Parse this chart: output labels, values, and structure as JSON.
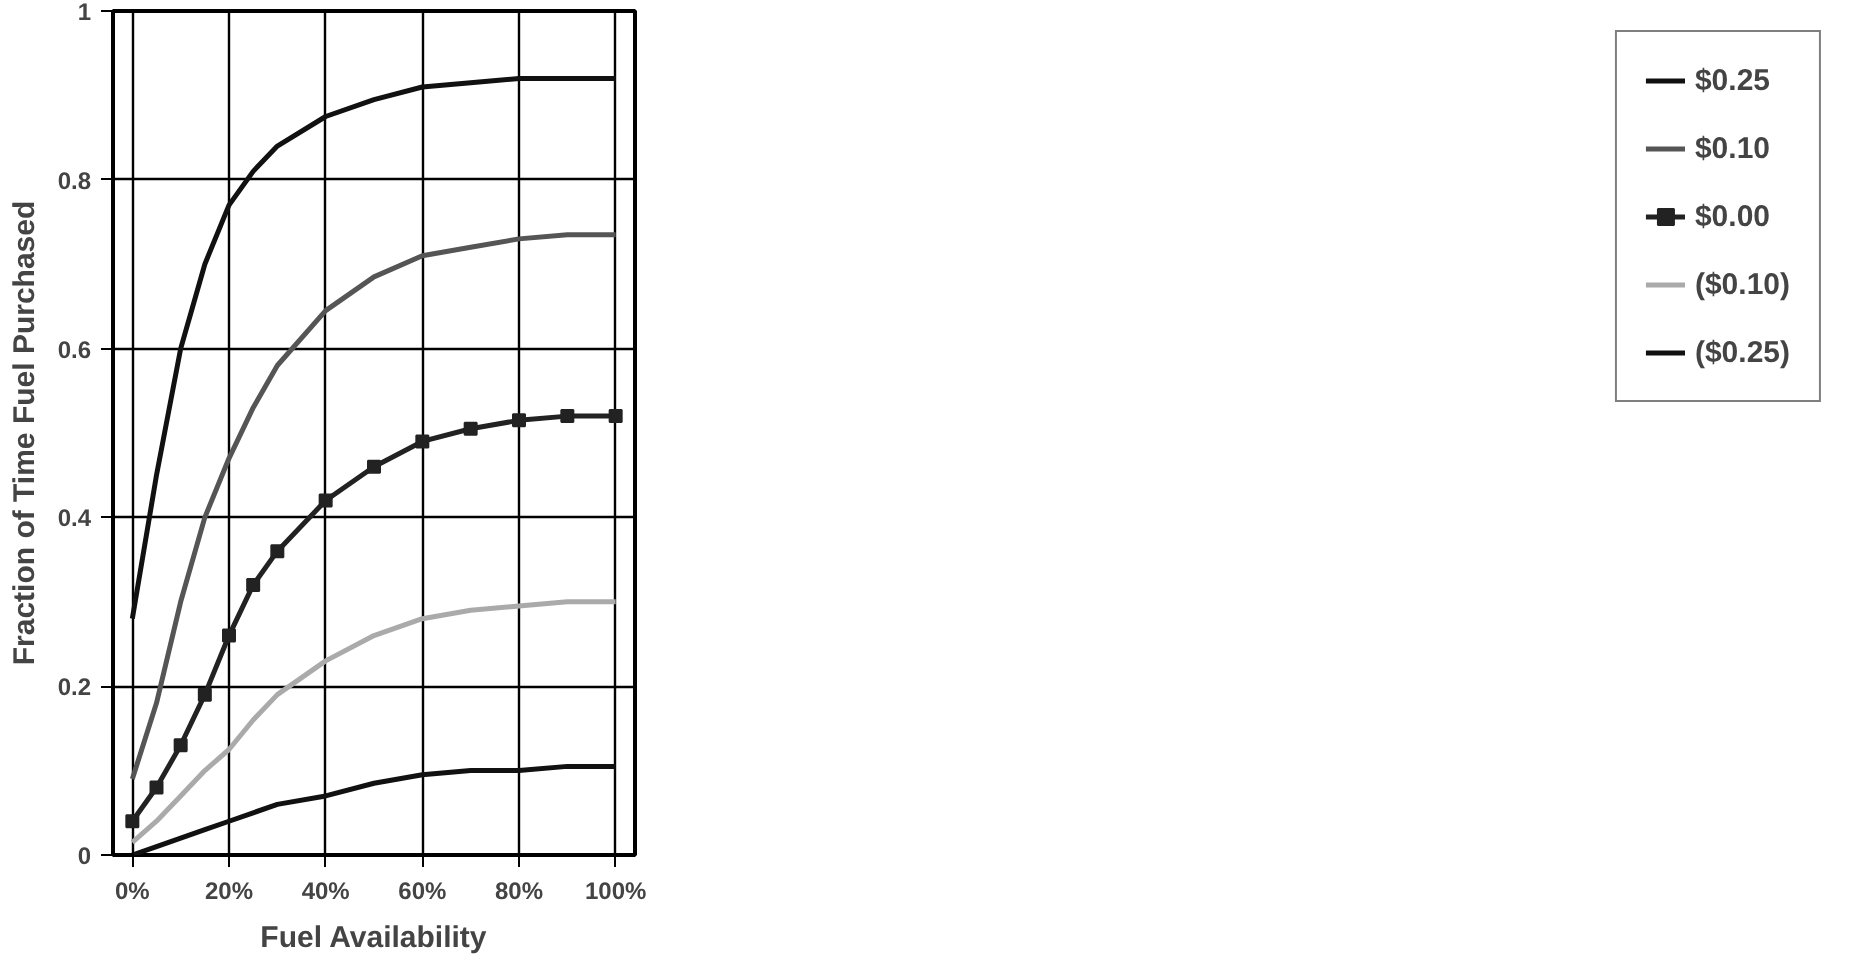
{
  "chart_data": {
    "type": "line",
    "xlabel": "Fuel Availability",
    "ylabel": "Fraction of Time Fuel Purchased",
    "x": [
      0,
      5,
      10,
      15,
      20,
      25,
      30,
      40,
      50,
      60,
      70,
      80,
      90,
      100
    ],
    "series": [
      {
        "name": "$0.25",
        "color": "#111111",
        "values": [
          0.28,
          0.45,
          0.6,
          0.7,
          0.77,
          0.81,
          0.84,
          0.875,
          0.895,
          0.91,
          0.915,
          0.92,
          0.92,
          0.92
        ]
      },
      {
        "name": "$0.10",
        "color": "#555555",
        "values": [
          0.09,
          0.18,
          0.3,
          0.4,
          0.47,
          0.53,
          0.58,
          0.645,
          0.685,
          0.71,
          0.72,
          0.73,
          0.735,
          0.735
        ]
      },
      {
        "name": "$0.00",
        "color": "#222222",
        "marker": "square",
        "values": [
          0.04,
          0.08,
          0.13,
          0.19,
          0.26,
          0.32,
          0.36,
          0.42,
          0.46,
          0.49,
          0.505,
          0.515,
          0.52,
          0.52
        ]
      },
      {
        "name": "($0.10)",
        "color": "#aaaaaa",
        "values": [
          0.015,
          0.04,
          0.07,
          0.1,
          0.125,
          0.16,
          0.19,
          0.23,
          0.26,
          0.28,
          0.29,
          0.295,
          0.3,
          0.3
        ]
      },
      {
        "name": "($0.25)",
        "color": "#111111",
        "values": [
          0,
          0.01,
          0.02,
          0.03,
          0.04,
          0.05,
          0.06,
          0.07,
          0.085,
          0.095,
          0.1,
          0.1,
          0.105,
          0.105
        ]
      }
    ],
    "xlim": [
      -4,
      104
    ],
    "ylim": [
      0,
      1
    ],
    "xticks": [
      {
        "value": 0,
        "label": "0%"
      },
      {
        "value": 20,
        "label": "20%"
      },
      {
        "value": 40,
        "label": "40%"
      },
      {
        "value": 60,
        "label": "60%"
      },
      {
        "value": 80,
        "label": "80%"
      },
      {
        "value": 100,
        "label": "100%"
      }
    ],
    "yticks": [
      0,
      0.2,
      0.4,
      0.6,
      0.8,
      1
    ],
    "grid": true,
    "legend": "right",
    "line_style": "solid"
  }
}
